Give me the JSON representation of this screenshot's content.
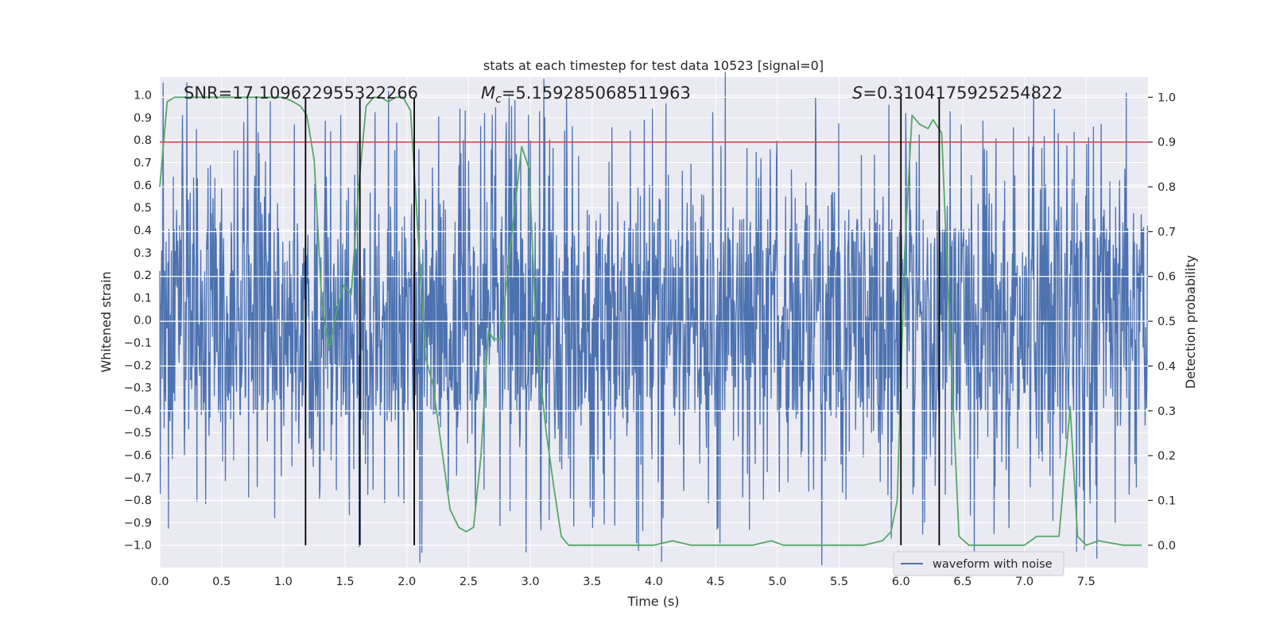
{
  "chart_data": {
    "type": "line",
    "title": "stats at each timestep for test data 10523 [signal=0]",
    "xlabel": "Time (s)",
    "ylabel_left": "Whitened strain",
    "ylabel_right": "Detection probability",
    "xlim": [
      0.0,
      8.0
    ],
    "ylim_left": [
      -1.1,
      1.08
    ],
    "ylim_right": [
      -0.05,
      1.045
    ],
    "x_ticks": [
      "0.0",
      "0.5",
      "1.0",
      "1.5",
      "2.0",
      "2.5",
      "3.0",
      "3.5",
      "4.0",
      "4.5",
      "5.0",
      "5.5",
      "6.0",
      "6.5",
      "7.0",
      "7.5"
    ],
    "y_ticks_left": [
      "1.0",
      "0.9",
      "0.8",
      "0.7",
      "0.6",
      "0.5",
      "0.4",
      "0.3",
      "0.2",
      "0.1",
      "0.0",
      "-0.1",
      "-0.2",
      "-0.3",
      "-0.4",
      "-0.5",
      "-0.6",
      "-0.7",
      "-0.8",
      "-0.9",
      "-1.0"
    ],
    "y_ticks_right": [
      "1.0",
      "0.9",
      "0.8",
      "0.7",
      "0.6",
      "0.5",
      "0.4",
      "0.3",
      "0.2",
      "0.1",
      "0.0"
    ],
    "grid": true,
    "legend": {
      "position": "bottom-right",
      "entries": [
        "waveform with noise"
      ]
    },
    "annotations": {
      "snr": "SNR=17.109622955322266",
      "mc_symbol": "M",
      "mc_subscript": "c",
      "mc_value": "=5.159285068511963",
      "s_symbol": "S",
      "s_value": "=0.3104175925254822"
    },
    "threshold_right": 0.9,
    "event_lines_x": [
      1.18,
      1.62,
      2.06,
      6.0,
      6.31
    ],
    "waveform": {
      "name": "waveform with noise",
      "sample_rate_hz": 256,
      "core_band": [
        -0.41,
        0.38
      ],
      "typical_peak": 0.6,
      "max_peaks": [
        {
          "t": 0.71,
          "v": 1.0
        },
        {
          "t": 0.68,
          "v": 0.88
        },
        {
          "t": 1.09,
          "v": 0.87
        },
        {
          "t": 2.63,
          "v": 0.92
        },
        {
          "t": 3.92,
          "v": 0.89
        },
        {
          "t": 6.04,
          "v": 0.92
        },
        {
          "t": 7.56,
          "v": 0.86
        },
        {
          "t": 0.93,
          "v": -0.88
        },
        {
          "t": 5.92,
          "v": -0.97
        },
        {
          "t": 6.19,
          "v": -0.9
        }
      ]
    },
    "detection_probability": {
      "x": [
        0.0,
        0.06,
        0.12,
        0.3,
        0.6,
        0.9,
        1.0,
        1.08,
        1.14,
        1.19,
        1.25,
        1.31,
        1.37,
        1.43,
        1.49,
        1.55,
        1.61,
        1.67,
        1.73,
        1.79,
        1.85,
        1.91,
        1.97,
        2.03,
        2.09,
        2.15,
        2.21,
        2.27,
        2.35,
        2.42,
        2.48,
        2.54,
        2.6,
        2.66,
        2.7,
        2.76,
        2.84,
        2.93,
        2.99,
        3.05,
        3.13,
        3.19,
        3.25,
        3.31,
        3.5,
        3.7,
        4.0,
        4.15,
        4.3,
        4.5,
        4.8,
        4.95,
        5.05,
        5.3,
        5.5,
        5.7,
        5.85,
        5.92,
        5.97,
        6.03,
        6.09,
        6.15,
        6.22,
        6.26,
        6.33,
        6.4,
        6.47,
        6.55,
        6.65,
        6.8,
        7.0,
        7.1,
        7.2,
        7.28,
        7.37,
        7.43,
        7.5,
        7.6,
        7.8,
        7.95
      ],
      "y": [
        0.8,
        0.99,
        1.0,
        1.0,
        1.0,
        1.0,
        1.0,
        0.99,
        0.98,
        0.96,
        0.86,
        0.55,
        0.44,
        0.52,
        0.58,
        0.56,
        0.8,
        0.98,
        1.0,
        1.0,
        0.99,
        1.0,
        1.0,
        0.97,
        0.7,
        0.42,
        0.36,
        0.24,
        0.08,
        0.04,
        0.03,
        0.04,
        0.2,
        0.48,
        0.46,
        0.46,
        0.67,
        0.89,
        0.84,
        0.45,
        0.25,
        0.13,
        0.02,
        0.0,
        0.0,
        0.0,
        0.0,
        0.01,
        0.0,
        0.0,
        0.0,
        0.01,
        0.0,
        0.0,
        0.0,
        0.0,
        0.01,
        0.03,
        0.1,
        0.65,
        0.96,
        0.94,
        0.93,
        0.95,
        0.92,
        0.45,
        0.02,
        0.0,
        0.0,
        0.0,
        0.0,
        0.02,
        0.02,
        0.02,
        0.31,
        0.02,
        0.0,
        0.01,
        0.0,
        0.0
      ]
    }
  },
  "colors": {
    "axes_bg": "#eaeaf2",
    "grid": "#ffffff",
    "waveform": "#4c72b0",
    "probability": "#55a868",
    "threshold": "#c44e52",
    "event_line": "#000000",
    "text": "#262626"
  }
}
